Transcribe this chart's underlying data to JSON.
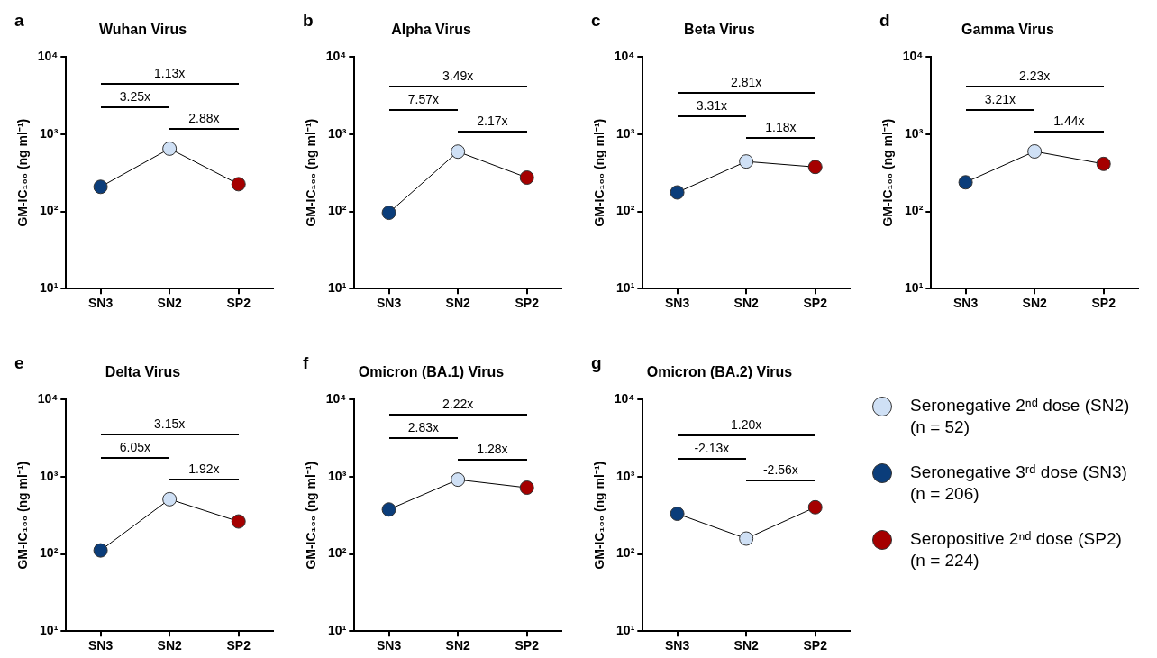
{
  "chart_data": [
    {
      "type": "line",
      "title": "Wuhan Virus",
      "ylabel": "GM-IC₁₀₀ (ng ml⁻¹)",
      "categories": [
        "SN3",
        "SN2",
        "SP2"
      ],
      "log": true,
      "ylim": [
        10,
        10000
      ],
      "yticks": [
        {
          "value": 10,
          "label": "10¹"
        },
        {
          "value": 100,
          "label": "10²"
        },
        {
          "value": 1000,
          "label": "10³"
        },
        {
          "value": 10000,
          "label": "10⁴"
        }
      ],
      "marker": "circle",
      "legend": false,
      "series": [
        {
          "color": "#000000",
          "values": [
            208,
            650,
            225
          ],
          "colors": [
            "#0b3d7a",
            "#cfe0f5",
            "#a50000"
          ]
        }
      ],
      "annotations": [
        "a",
        "1.13x",
        "3.25x",
        "2.88x"
      ]
    },
    {
      "type": "line",
      "title": "Alpha Virus",
      "ylabel": "GM-IC₁₀₀ (ng ml⁻¹)",
      "categories": [
        "SN3",
        "SN2",
        "SP2"
      ],
      "log": true,
      "ylim": [
        10,
        10000
      ],
      "yticks": [
        {
          "value": 10,
          "label": "10¹"
        },
        {
          "value": 100,
          "label": "10²"
        },
        {
          "value": 1000,
          "label": "10³"
        },
        {
          "value": 10000,
          "label": "10⁴"
        }
      ],
      "marker": "circle",
      "legend": false,
      "series": [
        {
          "color": "#000000",
          "values": [
            96,
            594,
            274
          ],
          "colors": [
            "#0b3d7a",
            "#cfe0f5",
            "#a50000"
          ]
        }
      ],
      "annotations": [
        "b",
        "3.49x",
        "7.57x",
        "2.17x"
      ]
    },
    {
      "type": "line",
      "title": "Beta Virus",
      "ylabel": "GM-IC₁₀₀ (ng ml⁻¹)",
      "categories": [
        "SN3",
        "SN2",
        "SP2"
      ],
      "log": true,
      "ylim": [
        10,
        10000
      ],
      "yticks": [
        {
          "value": 10,
          "label": "10¹"
        },
        {
          "value": 100,
          "label": "10²"
        },
        {
          "value": 1000,
          "label": "10³"
        },
        {
          "value": 10000,
          "label": "10⁴"
        }
      ],
      "marker": "circle",
      "legend": false,
      "series": [
        {
          "color": "#000000",
          "values": [
            176,
            443,
            376
          ],
          "colors": [
            "#0b3d7a",
            "#cfe0f5",
            "#a50000"
          ]
        }
      ],
      "annotations": [
        "c",
        "2.81x",
        "3.31x",
        "1.18x"
      ]
    },
    {
      "type": "line",
      "title": "Gamma Virus",
      "ylabel": "GM-IC₁₀₀ (ng ml⁻¹)",
      "categories": [
        "SN3",
        "SN2",
        "SP2"
      ],
      "log": true,
      "ylim": [
        10,
        10000
      ],
      "yticks": [
        {
          "value": 10,
          "label": "10¹"
        },
        {
          "value": 100,
          "label": "10²"
        },
        {
          "value": 1000,
          "label": "10³"
        },
        {
          "value": 10000,
          "label": "10⁴"
        }
      ],
      "marker": "circle",
      "legend": false,
      "series": [
        {
          "color": "#000000",
          "values": [
            238,
            598,
            412
          ],
          "colors": [
            "#0b3d7a",
            "#cfe0f5",
            "#a50000"
          ]
        }
      ],
      "annotations": [
        "d",
        "2.23x",
        "3.21x",
        "1.44x"
      ]
    },
    {
      "type": "line",
      "title": "Delta Virus",
      "ylabel": "GM-IC₁₀₀ (ng ml⁻¹)",
      "categories": [
        "SN3",
        "SN2",
        "SP2"
      ],
      "log": true,
      "ylim": [
        10,
        10000
      ],
      "yticks": [
        {
          "value": 10,
          "label": "10¹"
        },
        {
          "value": 100,
          "label": "10²"
        },
        {
          "value": 1000,
          "label": "10³"
        },
        {
          "value": 10000,
          "label": "10⁴"
        }
      ],
      "marker": "circle",
      "legend": false,
      "series": [
        {
          "color": "#000000",
          "values": [
            111,
            511,
            263
          ],
          "colors": [
            "#0b3d7a",
            "#cfe0f5",
            "#a50000"
          ]
        }
      ],
      "annotations": [
        "e",
        "3.15x",
        "6.05x",
        "1.92x"
      ]
    },
    {
      "type": "line",
      "title": "Omicron (BA.1) Virus",
      "ylabel": "GM-IC₁₀₀ (ng ml⁻¹)",
      "categories": [
        "SN3",
        "SN2",
        "SP2"
      ],
      "log": true,
      "ylim": [
        10,
        10000
      ],
      "yticks": [
        {
          "value": 10,
          "label": "10¹"
        },
        {
          "value": 100,
          "label": "10²"
        },
        {
          "value": 1000,
          "label": "10³"
        },
        {
          "value": 10000,
          "label": "10⁴"
        }
      ],
      "marker": "circle",
      "legend": false,
      "series": [
        {
          "color": "#000000",
          "values": [
            376,
            916,
            721
          ],
          "colors": [
            "#0b3d7a",
            "#cfe0f5",
            "#a50000"
          ]
        }
      ],
      "annotations": [
        "f",
        "2.22x",
        "2.83x",
        "1.28x"
      ]
    },
    {
      "type": "line",
      "title": "Omicron (BA.2) Virus",
      "ylabel": "GM-IC₁₀₀ (ng ml⁻¹)",
      "categories": [
        "SN3",
        "SN2",
        "SP2"
      ],
      "log": true,
      "ylim": [
        10,
        10000
      ],
      "yticks": [
        {
          "value": 10,
          "label": "10¹"
        },
        {
          "value": 100,
          "label": "10²"
        },
        {
          "value": 1000,
          "label": "10³"
        },
        {
          "value": 10000,
          "label": "10⁴"
        }
      ],
      "marker": "circle",
      "legend": false,
      "series": [
        {
          "color": "#000000",
          "values": [
            331,
            158,
            402
          ],
          "colors": [
            "#0b3d7a",
            "#cfe0f5",
            "#a50000"
          ]
        }
      ],
      "annotations": [
        "g",
        "1.20x",
        "-2.13x",
        "-2.56x"
      ]
    },
    {
      "type": "other",
      "colors": [
        "#cfe0f5",
        "#0b3d7a",
        "#a50000"
      ],
      "annotations": [
        "Seronegative 2ⁿᵈ dose (SN2) (n = 52)",
        "Seronegative 3ʳᵈ dose (SN3) (n = 206)",
        "Seropositive 2ⁿᵈ dose (SP2) (n = 224)"
      ]
    }
  ]
}
